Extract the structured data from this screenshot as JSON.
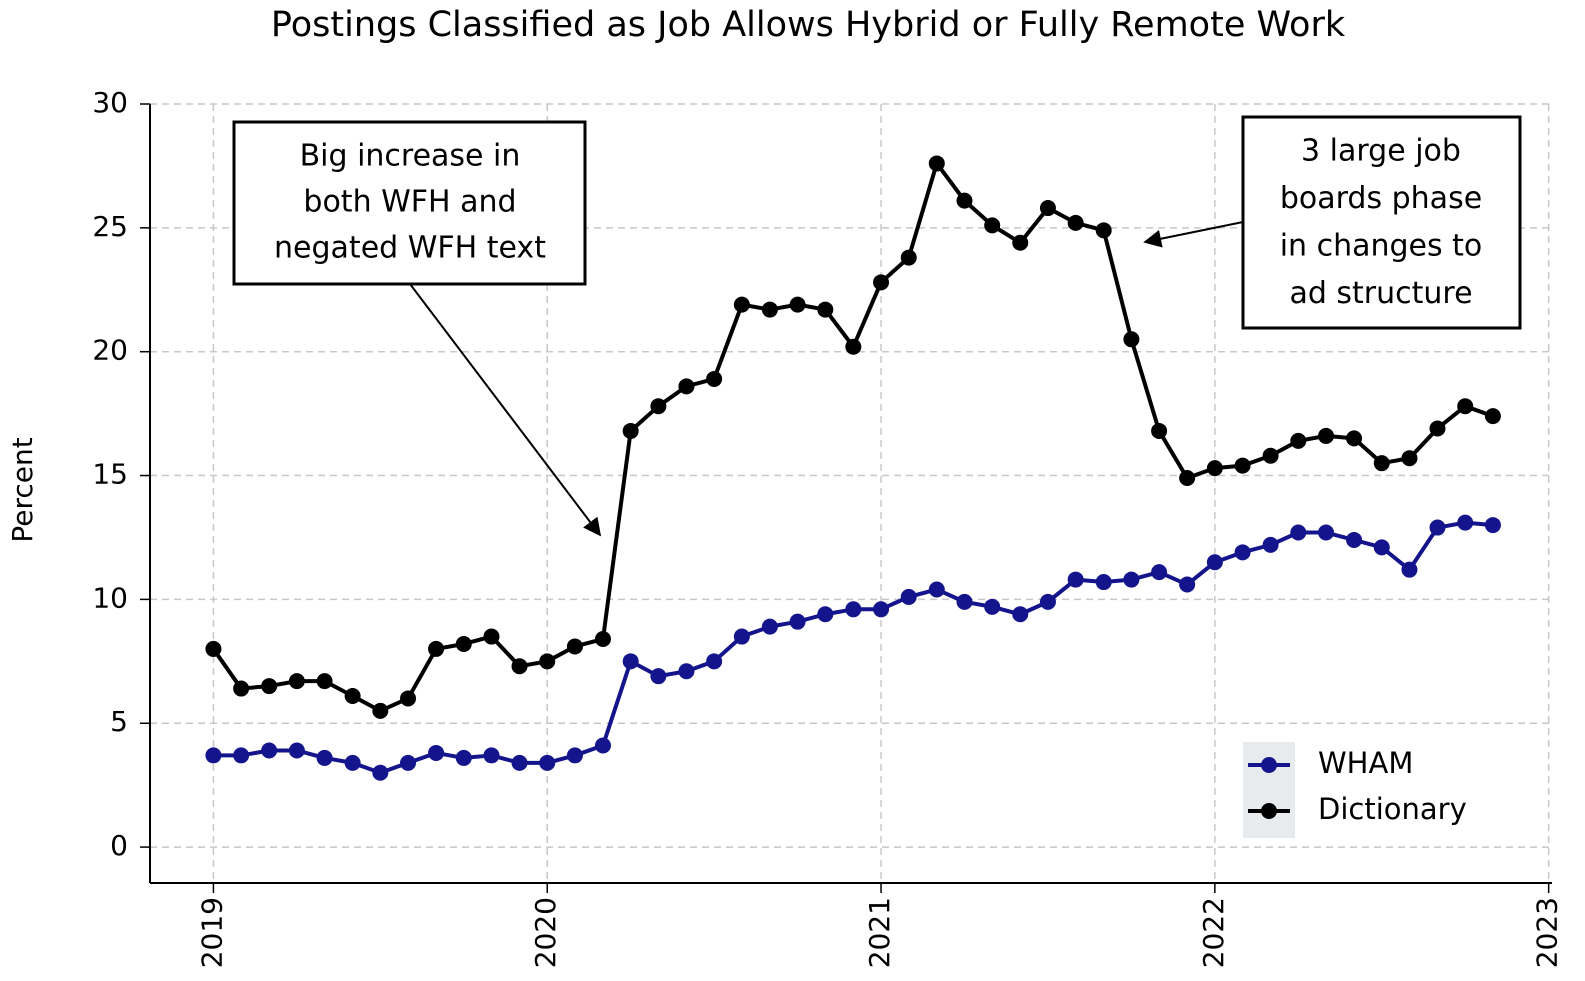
{
  "chart_data": {
    "type": "line",
    "title": "Postings Classified as Job Allows Hybrid or Fully Remote Work",
    "y_label": "Percent",
    "x": [
      2019,
      2019.083,
      2019.167,
      2019.25,
      2019.333,
      2019.417,
      2019.5,
      2019.583,
      2019.667,
      2019.75,
      2019.833,
      2019.917,
      2020,
      2020.083,
      2020.167,
      2020.25,
      2020.333,
      2020.417,
      2020.5,
      2020.583,
      2020.667,
      2020.75,
      2020.833,
      2020.917,
      2021,
      2021.083,
      2021.167,
      2021.25,
      2021.333,
      2021.417,
      2021.5,
      2021.583,
      2021.667,
      2021.75,
      2021.833,
      2021.917,
      2022,
      2022.083,
      2022.167,
      2022.25,
      2022.333,
      2022.417,
      2022.5,
      2022.583,
      2022.667,
      2022.75,
      2022.833
    ],
    "series": [
      {
        "name": "WHAM",
        "color": "#14148c",
        "values": [
          3.7,
          3.7,
          3.9,
          3.9,
          3.6,
          3.4,
          3.0,
          3.4,
          3.8,
          3.6,
          3.7,
          3.4,
          3.4,
          3.7,
          4.1,
          7.5,
          6.9,
          7.1,
          7.5,
          8.5,
          8.9,
          9.1,
          9.4,
          9.6,
          9.6,
          10.1,
          10.4,
          9.9,
          9.7,
          9.4,
          9.9,
          10.8,
          10.7,
          10.8,
          11.1,
          10.6,
          11.5,
          11.9,
          12.2,
          12.7,
          12.7,
          12.4,
          12.1,
          11.2,
          12.9,
          13.1,
          13.0
        ]
      },
      {
        "name": "Dictionary",
        "color": "#000000",
        "values": [
          8.0,
          6.4,
          6.5,
          6.7,
          6.7,
          6.1,
          5.5,
          6.0,
          8.0,
          8.2,
          8.5,
          7.3,
          7.5,
          8.1,
          8.4,
          16.8,
          17.8,
          18.6,
          18.9,
          21.9,
          21.7,
          21.9,
          21.7,
          20.2,
          22.8,
          23.8,
          27.6,
          26.1,
          25.1,
          24.4,
          25.8,
          25.2,
          24.9,
          20.5,
          16.8,
          14.9,
          15.3,
          15.4,
          15.8,
          16.4,
          16.6,
          16.5,
          15.5,
          15.7,
          16.9,
          17.8,
          17.4
        ]
      }
    ],
    "xlim": [
      2018.81,
      2023.01
    ],
    "xticks": [
      2019,
      2020,
      2021,
      2022,
      2023
    ],
    "ylim": [
      -1.45,
      30
    ],
    "yticks": [
      0,
      5,
      10,
      15,
      20,
      25,
      30
    ],
    "grid": true,
    "legend": "lower right",
    "annotations": [
      {
        "lines": [
          "Big increase in",
          "both WFH and",
          "negated WFH text"
        ]
      },
      {
        "lines": [
          "3 large job",
          "boards phase",
          "in changes to",
          "ad structure"
        ]
      }
    ]
  }
}
